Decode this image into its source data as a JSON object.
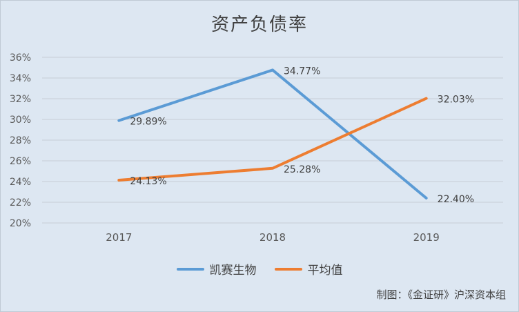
{
  "chart_data": {
    "type": "line",
    "title": "资产负债率",
    "categories": [
      "2017",
      "2018",
      "2019"
    ],
    "y_ticks": [
      "20%",
      "22%",
      "24%",
      "26%",
      "28%",
      "30%",
      "32%",
      "34%",
      "36%"
    ],
    "ylim": [
      20,
      36
    ],
    "grid": true,
    "legend_position": "bottom",
    "series": [
      {
        "name": "凯赛生物",
        "values": [
          29.89,
          34.77,
          22.4
        ],
        "labels": [
          "29.89%",
          "34.77%",
          "22.40%"
        ],
        "color": "#5b9bd5"
      },
      {
        "name": "平均值",
        "values": [
          24.13,
          25.28,
          32.03
        ],
        "labels": [
          "24.13%",
          "25.28%",
          "32.03%"
        ],
        "color": "#ed7d31"
      }
    ]
  },
  "source_note": "制图：《金证研》沪深资本组"
}
